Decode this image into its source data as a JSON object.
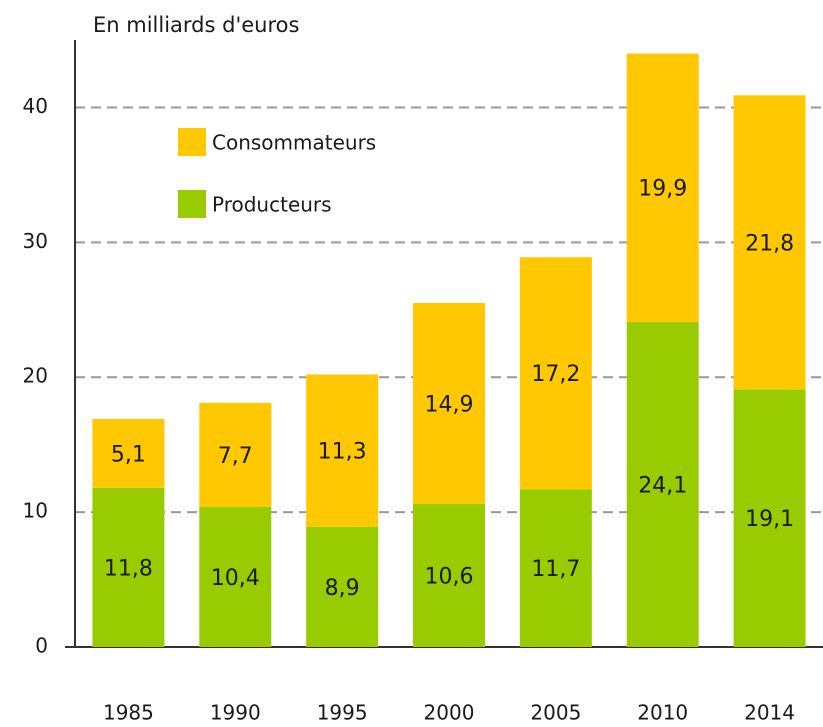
{
  "chart_data": {
    "type": "stacked_bar",
    "ylabel": "En milliards d'euros",
    "categories": [
      "1985",
      "1990",
      "1995",
      "2000",
      "2005",
      "2010",
      "2014"
    ],
    "series": [
      {
        "name": "Producteurs",
        "color": "#99cc00",
        "values": [
          11.8,
          10.4,
          8.9,
          10.6,
          11.7,
          24.1,
          19.1
        ],
        "value_labels": [
          "11,8",
          "10,4",
          "8,9",
          "10,6",
          "11,7",
          "24,1",
          "19,1"
        ]
      },
      {
        "name": "Consommateurs",
        "color": "#ffc800",
        "values": [
          5.1,
          7.7,
          11.3,
          14.9,
          17.2,
          19.9,
          21.8
        ],
        "value_labels": [
          "5,1",
          "7,7",
          "11,3",
          "14,9",
          "17,2",
          "19,9",
          "21,8"
        ]
      }
    ],
    "ylim": [
      0,
      45
    ],
    "yticks": [
      0,
      10,
      20,
      30,
      40
    ],
    "grid": true,
    "legend": "upper left"
  }
}
